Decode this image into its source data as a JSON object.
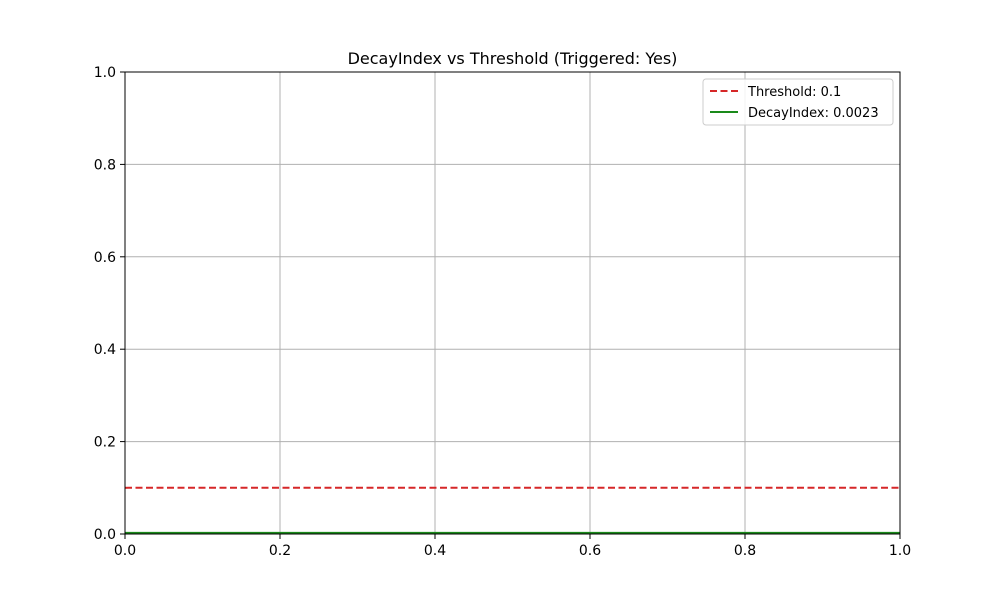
{
  "chart_data": {
    "type": "line",
    "title": "DecayIndex vs Threshold (Triggered: Yes)",
    "xlabel": "",
    "ylabel": "",
    "xlim": [
      0.0,
      1.0
    ],
    "ylim": [
      0.0,
      1.0
    ],
    "x_ticks": [
      0.0,
      0.2,
      0.4,
      0.6,
      0.8,
      1.0
    ],
    "y_ticks": [
      0.0,
      0.2,
      0.4,
      0.6,
      0.8,
      1.0
    ],
    "x_tick_labels": [
      "0.0",
      "0.2",
      "0.4",
      "0.6",
      "0.8",
      "1.0"
    ],
    "y_tick_labels": [
      "0.0",
      "0.2",
      "0.4",
      "0.6",
      "0.8",
      "1.0"
    ],
    "grid": true,
    "legend_position": "top-right",
    "series": [
      {
        "name": "Threshold: 0.1",
        "style": "dashed",
        "color": "#d62728",
        "x": [
          0.0,
          1.0
        ],
        "y": [
          0.1,
          0.1
        ]
      },
      {
        "name": "DecayIndex: 0.0023",
        "style": "solid",
        "color": "#1a8a1a",
        "x": [
          0.0,
          1.0
        ],
        "y": [
          0.0023,
          0.0023
        ]
      }
    ]
  }
}
